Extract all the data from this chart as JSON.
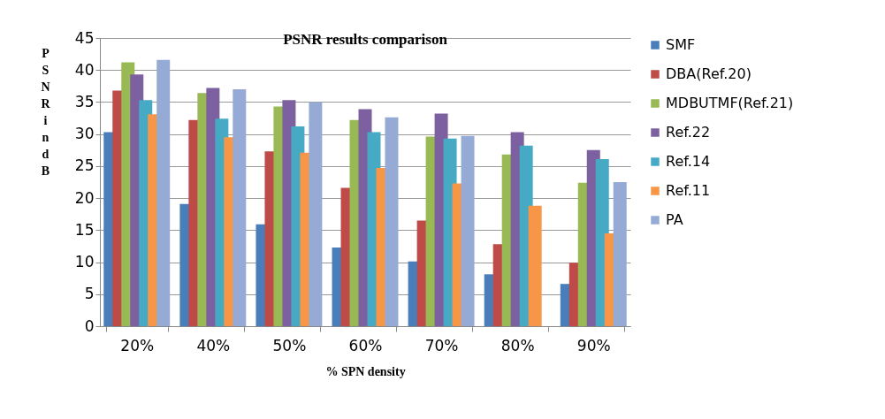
{
  "chart_data": {
    "type": "bar",
    "title": "PSNR results comparison",
    "xlabel": "% SPN density",
    "ylabel": "PSNR in dB",
    "categories": [
      "20%",
      "40%",
      "50%",
      "60%",
      "70%",
      "80%",
      "90%"
    ],
    "series": [
      {
        "name": "SMF",
        "color": "#4a7ebb",
        "values": [
          30.3,
          19.1,
          15.9,
          12.3,
          10.1,
          8.1,
          6.6
        ]
      },
      {
        "name": "DBA(Ref.20)",
        "color": "#be4b48",
        "values": [
          36.8,
          32.2,
          27.3,
          21.6,
          16.5,
          12.8,
          9.9
        ]
      },
      {
        "name": "MDBUTMF(Ref.21)",
        "color": "#98b954",
        "values": [
          41.2,
          36.4,
          34.3,
          32.2,
          29.6,
          26.8,
          22.4
        ]
      },
      {
        "name": "Ref.22",
        "color": "#7d60a0",
        "values": [
          39.3,
          37.2,
          35.3,
          33.9,
          33.2,
          30.3,
          27.5
        ]
      },
      {
        "name": "Ref.14",
        "color": "#46aac5",
        "values": [
          35.3,
          32.4,
          31.2,
          30.3,
          29.3,
          28.2,
          26.1
        ]
      },
      {
        "name": "Ref.11",
        "color": "#f79646",
        "values": [
          33.1,
          29.5,
          27.1,
          24.7,
          22.3,
          18.8,
          14.5
        ]
      },
      {
        "name": "PA",
        "color": "#95abd5",
        "values": [
          41.6,
          37.0,
          35.0,
          32.6,
          29.7,
          null,
          22.5
        ]
      }
    ],
    "ylim": [
      0,
      45
    ],
    "yticks": [
      0,
      5,
      10,
      15,
      20,
      25,
      30,
      35,
      40,
      45
    ],
    "grid": "y",
    "legend": "right"
  }
}
